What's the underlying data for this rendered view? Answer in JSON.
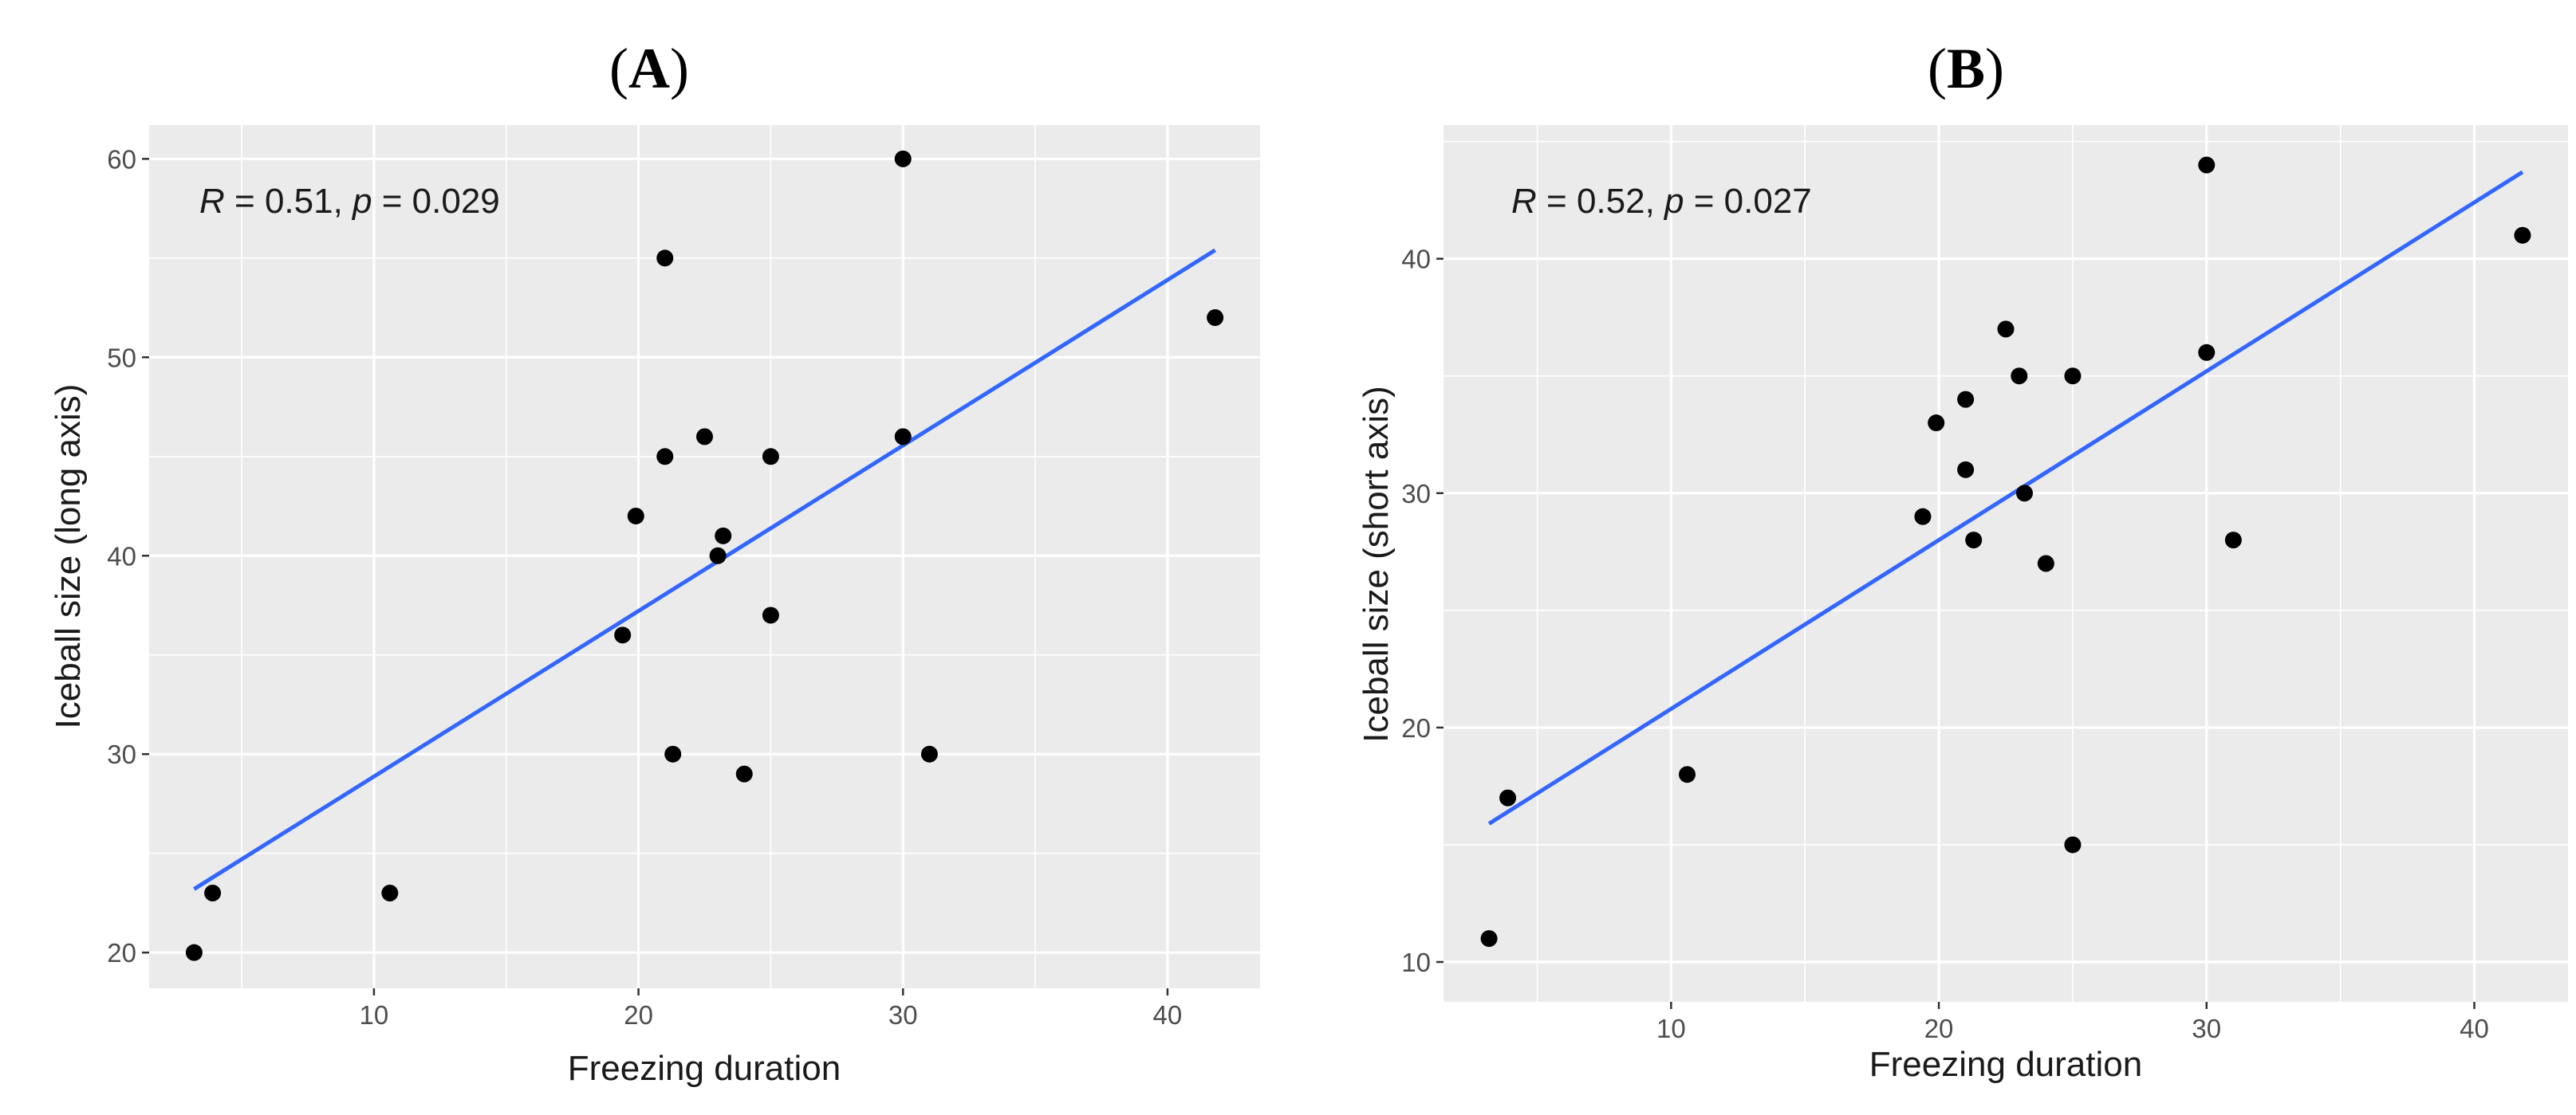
{
  "chart_data": [
    {
      "type": "scatter",
      "panel": "(A)",
      "panel_letter": "A",
      "annotation": {
        "r_symbol": "R",
        "r_value": "0.51",
        "p_symbol": "p",
        "p_value": "0.029"
      },
      "xlabel": "Freezing duration",
      "ylabel": "Iceball size (long axis)",
      "xlim": [
        1.5,
        43.5
      ],
      "ylim": [
        18.2,
        61.7
      ],
      "xticks": [
        10,
        20,
        30,
        40
      ],
      "yticks": [
        20,
        30,
        40,
        50,
        60
      ],
      "grid": true,
      "points": [
        [
          3.2,
          20
        ],
        [
          3.9,
          23
        ],
        [
          10.6,
          23
        ],
        [
          19.4,
          36
        ],
        [
          19.9,
          42
        ],
        [
          21.0,
          55
        ],
        [
          21.0,
          45
        ],
        [
          21.3,
          30
        ],
        [
          22.5,
          46
        ],
        [
          23.0,
          40
        ],
        [
          23.2,
          41
        ],
        [
          24.0,
          29
        ],
        [
          25.0,
          45
        ],
        [
          25.0,
          37
        ],
        [
          30.0,
          60
        ],
        [
          30.0,
          46
        ],
        [
          31.0,
          30
        ],
        [
          41.8,
          52
        ]
      ],
      "trendline": {
        "x": [
          3.2,
          41.8
        ],
        "y": [
          23.2,
          55.4
        ],
        "color": "#3366ff"
      },
      "point_color": "#000000"
    },
    {
      "type": "scatter",
      "panel": "(B)",
      "panel_letter": "B",
      "annotation": {
        "r_symbol": "R",
        "r_value": "0.52",
        "p_symbol": "p",
        "p_value": "0.027"
      },
      "xlabel": "Freezing duration",
      "ylabel": "Iceball size (short axis)",
      "xlim": [
        1.5,
        43.5
      ],
      "ylim": [
        8.3,
        45.7
      ],
      "xticks": [
        10,
        20,
        30,
        40
      ],
      "yticks": [
        10,
        20,
        30,
        40
      ],
      "grid": true,
      "points": [
        [
          3.2,
          11
        ],
        [
          3.9,
          17
        ],
        [
          10.6,
          18
        ],
        [
          19.4,
          29
        ],
        [
          19.9,
          33
        ],
        [
          21.0,
          34
        ],
        [
          21.0,
          31
        ],
        [
          21.3,
          28
        ],
        [
          22.5,
          37
        ],
        [
          23.0,
          35
        ],
        [
          23.2,
          30
        ],
        [
          24.0,
          27
        ],
        [
          25.0,
          35
        ],
        [
          25.0,
          15
        ],
        [
          30.0,
          44
        ],
        [
          30.0,
          36
        ],
        [
          31.0,
          28
        ],
        [
          41.8,
          41
        ]
      ],
      "trendline": {
        "x": [
          3.2,
          41.8
        ],
        "y": [
          15.9,
          43.7
        ],
        "color": "#3366ff"
      },
      "point_color": "#000000"
    }
  ]
}
